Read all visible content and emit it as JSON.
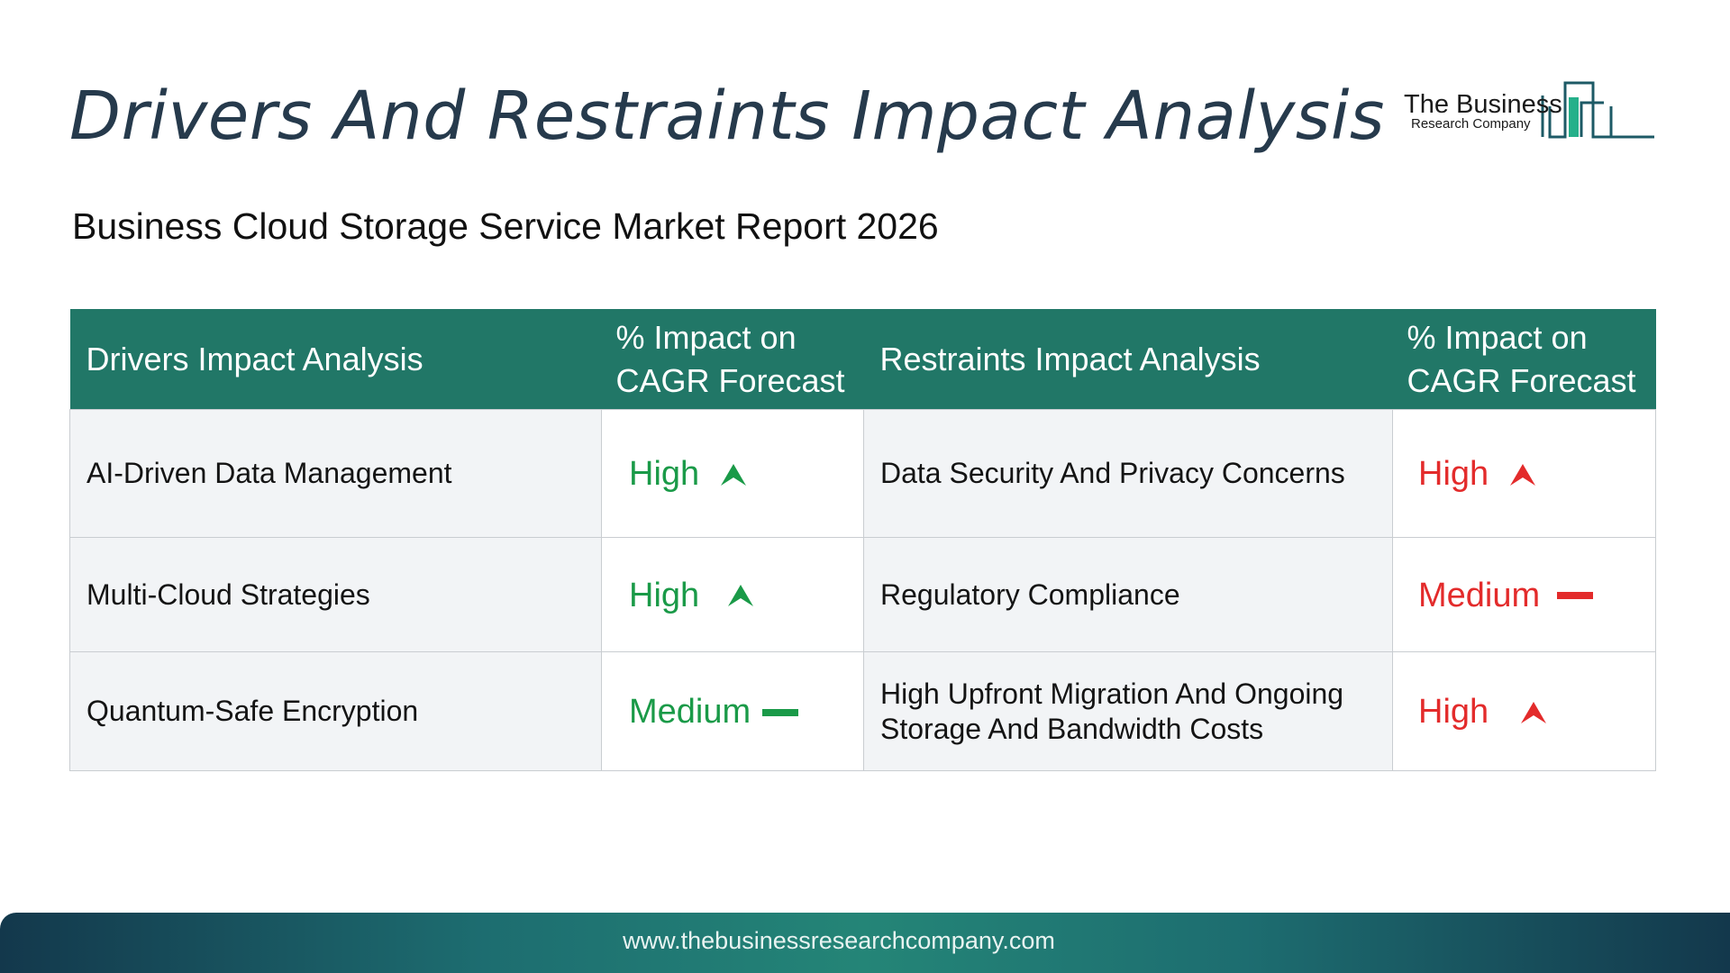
{
  "title": "Drivers And Restraints Impact Analysis",
  "subtitle": "Business Cloud Storage Service Market Report 2026",
  "logo": {
    "line1": "The Business",
    "line2": "Research Company"
  },
  "table": {
    "headers": {
      "drivers": "Drivers Impact Analysis",
      "drivers_impact": "% Impact on CAGR Forecast",
      "restraints": "Restraints Impact Analysis",
      "restraints_impact": "% Impact on CAGR Forecast"
    },
    "rows": [
      {
        "driver": "AI-Driven Data Management",
        "driver_impact": "High",
        "driver_trend": "up",
        "restraint": "Data Security And Privacy Concerns",
        "restraint_impact": "High",
        "restraint_trend": "up"
      },
      {
        "driver": "Multi-Cloud Strategies",
        "driver_impact": "High",
        "driver_trend": "up",
        "restraint": "Regulatory Compliance",
        "restraint_impact": "Medium",
        "restraint_trend": "flat"
      },
      {
        "driver": "Quantum-Safe Encryption",
        "driver_impact": "Medium",
        "driver_trend": "flat",
        "restraint": "High Upfront Migration And Ongoing Storage And Bandwidth Costs",
        "restraint_impact": "High",
        "restraint_trend": "up"
      }
    ]
  },
  "footer": {
    "url": "www.thebusinessresearchcompany.com"
  },
  "colors": {
    "title": "#263a4c",
    "header_bg": "#217767",
    "driver_level": "#1a9a48",
    "restraint_level": "#e32b2b",
    "name_cell_bg": "#f2f4f6"
  },
  "icons": {
    "up": "arrow-up-icon",
    "flat": "dash-icon"
  }
}
